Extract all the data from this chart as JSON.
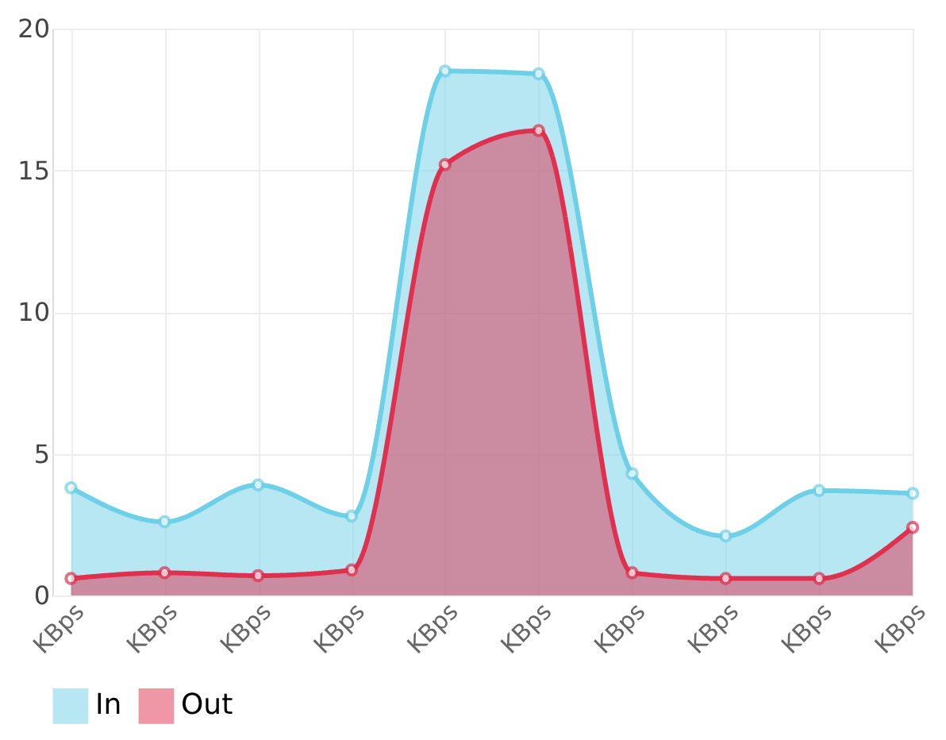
{
  "chart_data": {
    "type": "area",
    "categories": [
      "KBps",
      "KBps",
      "KBps",
      "KBps",
      "KBps",
      "KBps",
      "KBps",
      "KBps",
      "KBps",
      "KBps"
    ],
    "series": [
      {
        "name": "In",
        "color": "#6dd0e6",
        "values": [
          3.8,
          2.6,
          3.9,
          2.8,
          18.5,
          18.4,
          4.3,
          2.1,
          3.7,
          3.6
        ]
      },
      {
        "name": "Out",
        "color": "#e0304f",
        "values": [
          0.6,
          0.8,
          0.7,
          0.9,
          15.2,
          16.4,
          0.8,
          0.6,
          0.6,
          2.4
        ]
      }
    ],
    "ylim": [
      0,
      20
    ],
    "yticks": [
      0,
      5,
      10,
      15,
      20
    ],
    "grid": true,
    "legend": "bottom",
    "marker": "circle",
    "line_style": "solid"
  }
}
